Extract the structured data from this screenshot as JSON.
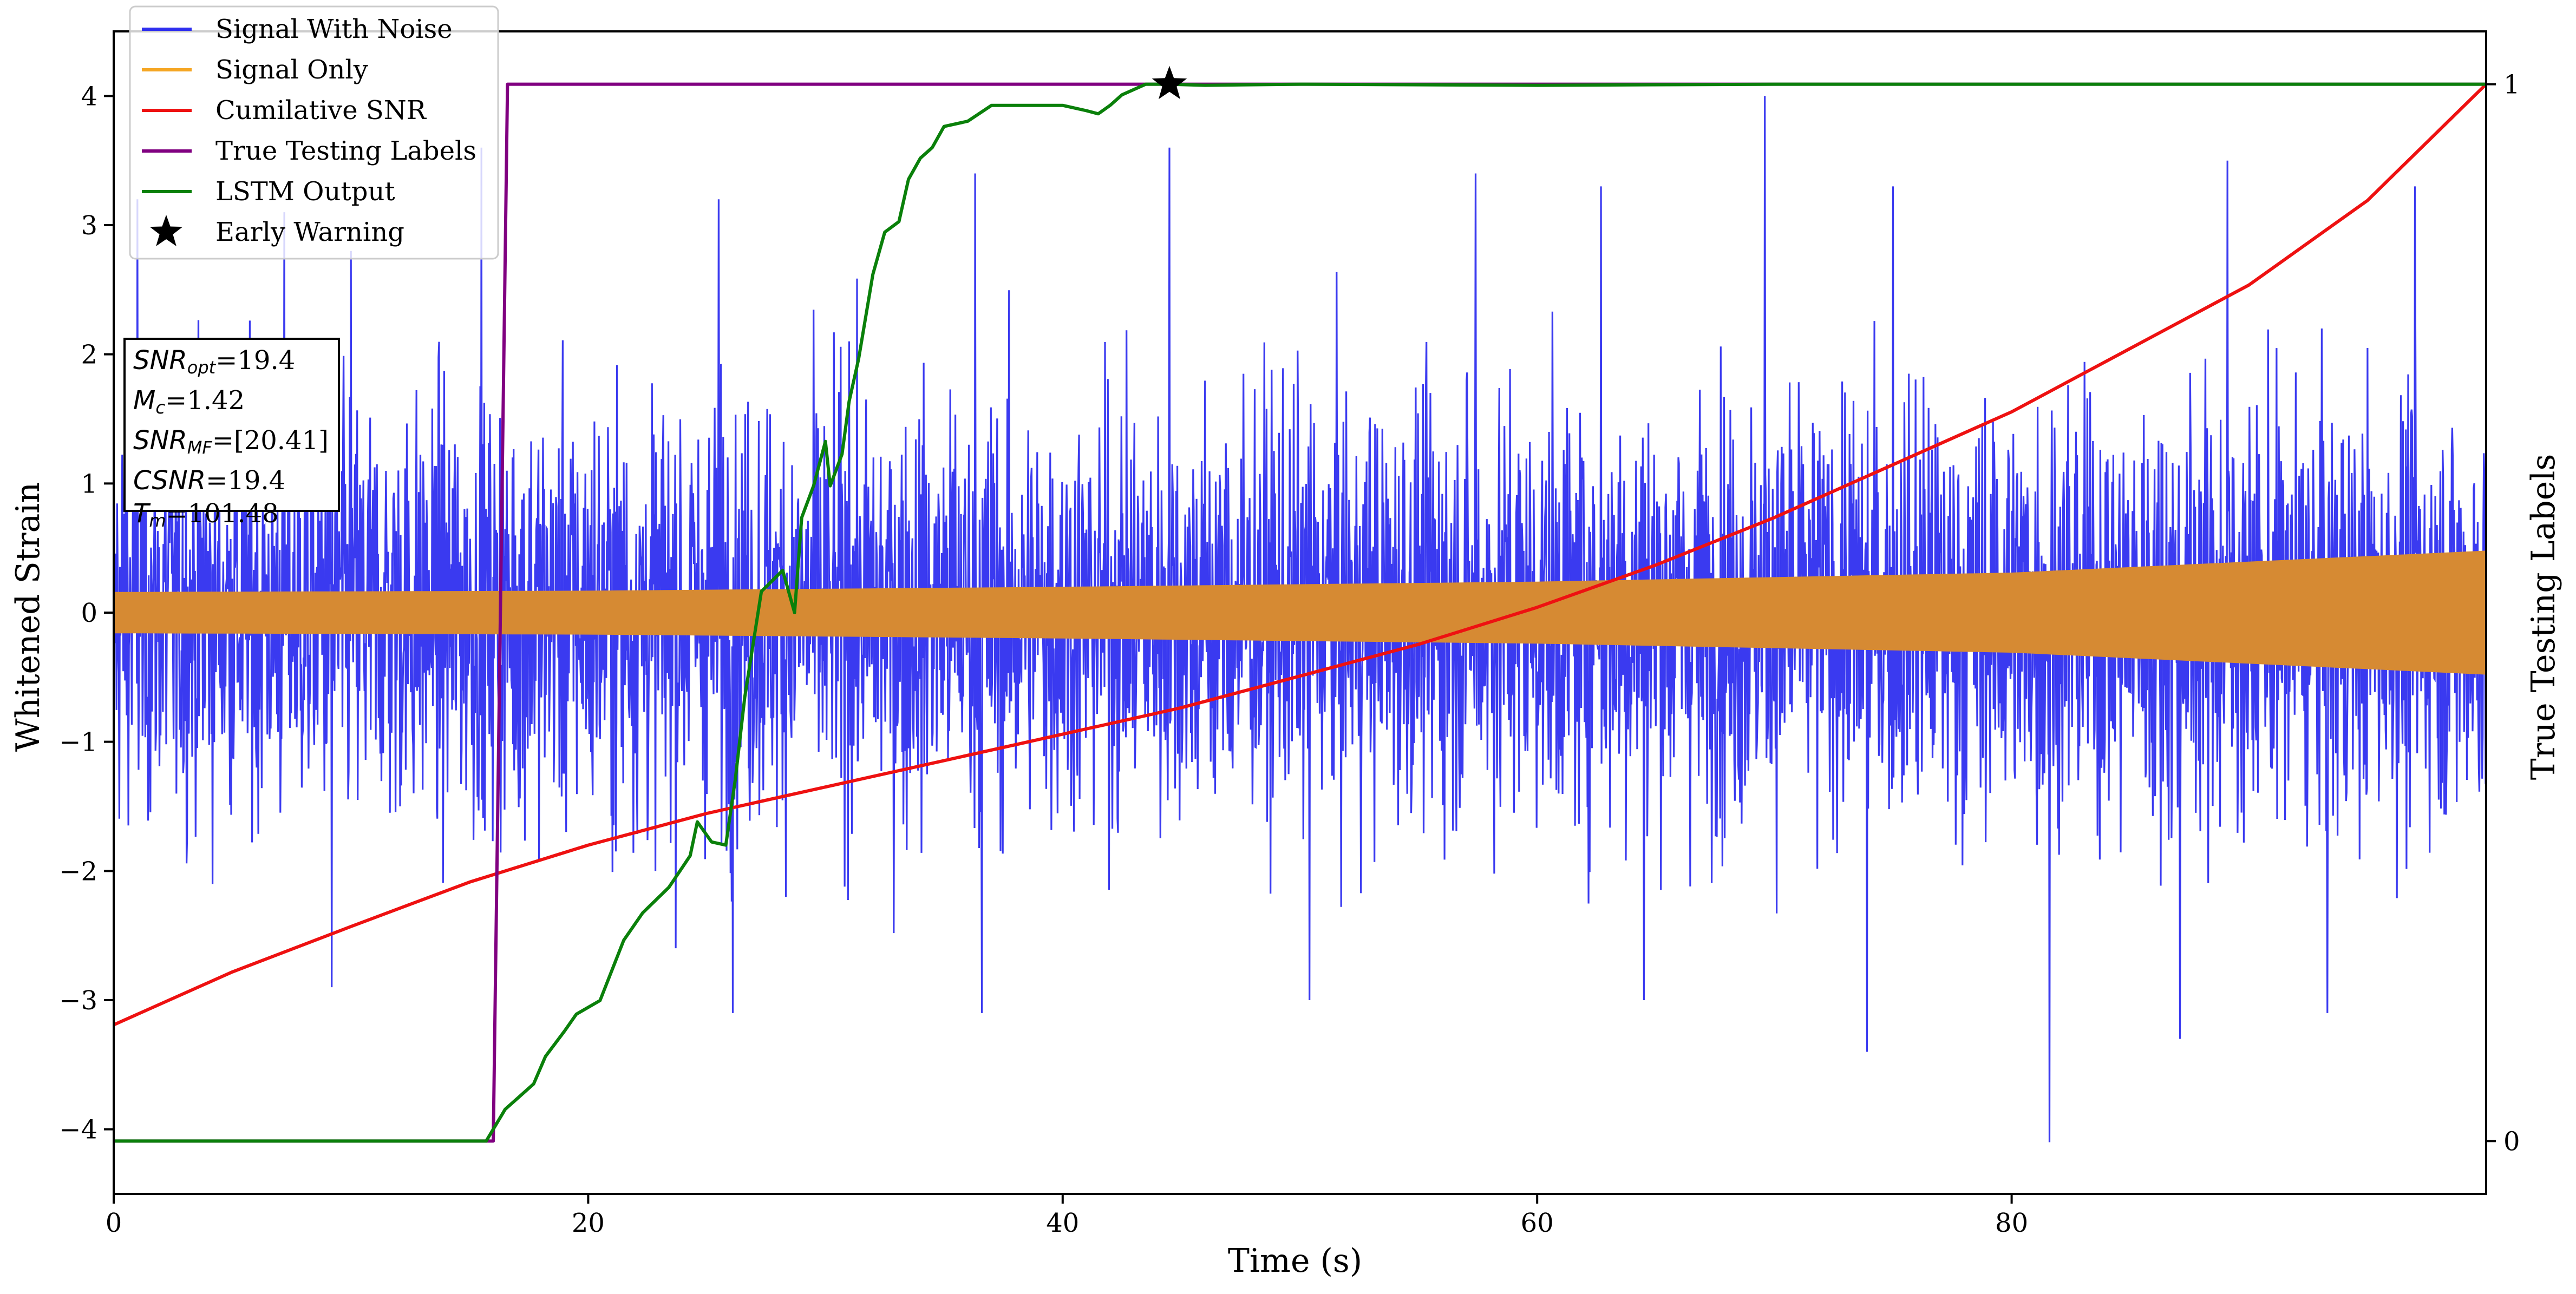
{
  "chart_data": {
    "type": "line",
    "xlabel": "Time (s)",
    "ylabel_left": "Whitened Strain",
    "ylabel_right": "True Testing Labels",
    "xlim": [
      0,
      100
    ],
    "ylim_left": [
      -4.5,
      4.5
    ],
    "ylim_right": [
      -0.05,
      1.05
    ],
    "x_ticks": [
      0,
      20,
      40,
      60,
      80
    ],
    "x_tick_labels": [
      "0",
      "20",
      "40",
      "60",
      "80"
    ],
    "y_left_ticks": [
      -4,
      -3,
      -2,
      -1,
      0,
      1,
      2,
      3,
      4
    ],
    "y_left_tick_labels": [
      "−4",
      "−3",
      "−2",
      "−1",
      "0",
      "1",
      "2",
      "3",
      "4"
    ],
    "y_right_ticks": [
      0,
      1
    ],
    "y_right_tick_labels": [
      "0",
      "1"
    ],
    "grid": false,
    "legend_position": "top-left",
    "series": [
      {
        "name": "Signal With Noise",
        "axis": "left",
        "color": "#2f2fef",
        "description_envelope": "noise, spikes within about ±3.5",
        "peaks": [
          {
            "x": 1.0,
            "y": 3.2
          },
          {
            "x": 7.2,
            "y": 3.1
          },
          {
            "x": 10.0,
            "y": 2.8
          },
          {
            "x": 15.5,
            "y": 3.6
          },
          {
            "x": 25.5,
            "y": 3.2
          },
          {
            "x": 31.0,
            "y": 2.1
          },
          {
            "x": 36.3,
            "y": 3.4
          },
          {
            "x": 44.5,
            "y": 3.6
          },
          {
            "x": 57.4,
            "y": 3.4
          },
          {
            "x": 62.7,
            "y": 3.3
          },
          {
            "x": 69.6,
            "y": 4.0
          },
          {
            "x": 75.0,
            "y": 3.3
          },
          {
            "x": 89.1,
            "y": 3.5
          },
          {
            "x": 97.0,
            "y": 3.3
          }
        ],
        "troughs": [
          {
            "x": 9.2,
            "y": -2.9
          },
          {
            "x": 26.1,
            "y": -3.1
          },
          {
            "x": 36.6,
            "y": -3.1
          },
          {
            "x": 50.4,
            "y": -3.0
          },
          {
            "x": 64.5,
            "y": -3.0
          },
          {
            "x": 73.9,
            "y": -3.4
          },
          {
            "x": 81.6,
            "y": -4.1
          },
          {
            "x": 87.1,
            "y": -3.3
          },
          {
            "x": 93.3,
            "y": -3.1
          }
        ]
      },
      {
        "name": "Signal Only",
        "axis": "left",
        "color": "#f5a623",
        "envelope": {
          "x": [
            0,
            20,
            40,
            60,
            80,
            100
          ],
          "amplitude": [
            0.16,
            0.17,
            0.2,
            0.24,
            0.31,
            0.48
          ]
        }
      },
      {
        "name": "Cumilative SNR",
        "axis": "right",
        "color": "#ee1111",
        "x": [
          0,
          5,
          10,
          15,
          20,
          25,
          30,
          35,
          40,
          45,
          50,
          55,
          60,
          65,
          70,
          75,
          80,
          85,
          90,
          95,
          100
        ],
        "y": [
          0.11,
          0.16,
          0.203,
          0.245,
          0.28,
          0.31,
          0.335,
          0.36,
          0.385,
          0.41,
          0.44,
          0.47,
          0.505,
          0.545,
          0.59,
          0.64,
          0.69,
          0.75,
          0.81,
          0.89,
          1.0
        ]
      },
      {
        "name": "True Testing Labels",
        "axis": "right",
        "color": "#800080",
        "x": [
          0,
          16.0,
          16.6,
          100
        ],
        "y": [
          0,
          0,
          1,
          1
        ]
      },
      {
        "name": "LSTM Output",
        "axis": "right",
        "color": "#0a800a",
        "x": [
          0,
          15.7,
          16.5,
          17.7,
          18.2,
          19.0,
          19.5,
          20.5,
          21.5,
          22.3,
          23.4,
          24.0,
          24.3,
          24.6,
          25.2,
          25.8,
          26.2,
          26.6,
          27.3,
          28.2,
          28.7,
          29.0,
          29.5,
          30.0,
          30.2,
          30.7,
          31.0,
          31.4,
          32.0,
          32.5,
          33.1,
          33.5,
          34.0,
          34.5,
          35.0,
          36.0,
          37.0,
          38.5,
          40.0,
          41.0,
          41.5,
          42.0,
          42.5,
          43.5,
          44.5,
          46.0,
          50.0,
          60.0,
          70.0,
          80.0,
          90.0,
          100.0
        ],
        "y": [
          0.0,
          0.0,
          0.03,
          0.054,
          0.08,
          0.104,
          0.12,
          0.133,
          0.19,
          0.216,
          0.24,
          0.26,
          0.27,
          0.302,
          0.283,
          0.28,
          0.342,
          0.42,
          0.52,
          0.54,
          0.5,
          0.59,
          0.62,
          0.662,
          0.62,
          0.65,
          0.7,
          0.74,
          0.82,
          0.86,
          0.87,
          0.91,
          0.93,
          0.94,
          0.96,
          0.965,
          0.98,
          0.98,
          0.98,
          0.975,
          0.972,
          0.98,
          0.99,
          1.0,
          1.0,
          0.999,
          1.0,
          0.999,
          1.0,
          1.0,
          1.0,
          1.0
        ]
      },
      {
        "name": "Early Warning",
        "axis": "right",
        "color": "#000000",
        "marker": "star",
        "x": [
          44.5
        ],
        "y": [
          1.0
        ]
      }
    ],
    "annotation": {
      "snr_opt": "19.4",
      "mc": "1.42",
      "snr_mf": "[20.41]",
      "csnr": "19.4",
      "tm": "101.48"
    }
  },
  "params": {
    "snr_opt_base": "SNR",
    "snr_opt_sub": "opt",
    "snr_opt_val": "=19.4",
    "mc_base": "M",
    "mc_sub": "c",
    "mc_val": "=1.42",
    "snr_mf_base": "SNR",
    "snr_mf_sub": "MF",
    "snr_mf_val": "=[20.41]",
    "csnr_base": "CSNR",
    "csnr_val": "=19.4",
    "tm_base": "T",
    "tm_sub": "m",
    "tm_val": "=101.48"
  }
}
